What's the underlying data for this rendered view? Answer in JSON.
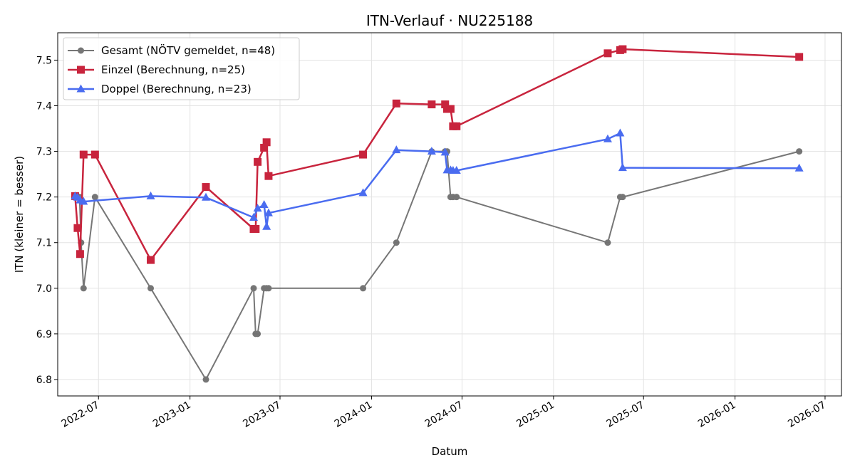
{
  "chart_data": {
    "type": "line",
    "title": "ITN-Verlauf · NU225188",
    "xlabel": "Datum",
    "ylabel": "ITN  (kleiner = besser)",
    "x_is_date": true,
    "xlim": [
      "2022-04-10",
      "2026-08-03"
    ],
    "ylim": [
      6.764,
      7.56
    ],
    "x_ticks": [
      "2022-07",
      "2023-01",
      "2023-07",
      "2024-01",
      "2024-07",
      "2025-01",
      "2025-07",
      "2026-01",
      "2026-07"
    ],
    "y_ticks": [
      "6.8",
      "6.9",
      "7.0",
      "7.1",
      "7.2",
      "7.3",
      "7.4",
      "7.5"
    ],
    "grid": true,
    "legend_position": "upper-left",
    "series": [
      {
        "name": "Gesamt (NÖTV gemeldet, n=48)",
        "color": "#555555",
        "marker": "circle",
        "x": [
          "2022-05-15",
          "2022-05-20",
          "2022-05-24",
          "2022-05-27",
          "2022-06-01",
          "2022-06-24",
          "2022-10-14",
          "2023-02-02",
          "2023-05-09",
          "2023-05-13",
          "2023-05-17",
          "2023-05-30",
          "2023-06-04",
          "2023-06-08",
          "2023-12-15",
          "2024-02-20",
          "2024-05-01",
          "2024-05-28",
          "2024-06-01",
          "2024-06-08",
          "2024-06-13",
          "2024-06-20",
          "2025-04-20",
          "2025-05-15",
          "2025-05-20",
          "2026-05-10"
        ],
        "values": [
          7.2,
          7.2,
          7.2,
          7.1,
          7.0,
          7.2,
          7.0,
          6.8,
          7.0,
          6.9,
          6.9,
          7.0,
          7.0,
          7.0,
          7.0,
          7.1,
          7.3,
          7.3,
          7.3,
          7.2,
          7.2,
          7.2,
          7.1,
          7.2,
          7.2,
          7.3
        ]
      },
      {
        "name": "Einzel (Berechnung, n=25)",
        "color": "#c8243d",
        "marker": "square",
        "x": [
          "2022-05-15",
          "2022-05-20",
          "2022-05-25",
          "2022-06-01",
          "2022-06-24",
          "2022-10-14",
          "2023-02-02",
          "2023-05-09",
          "2023-05-13",
          "2023-05-17",
          "2023-05-30",
          "2023-06-04",
          "2023-06-08",
          "2023-12-15",
          "2024-02-20",
          "2024-05-01",
          "2024-05-28",
          "2024-06-01",
          "2024-06-08",
          "2024-06-13",
          "2024-06-20",
          "2025-04-20",
          "2025-05-15",
          "2025-05-20",
          "2026-05-10"
        ],
        "values": [
          7.202,
          7.132,
          7.075,
          7.293,
          7.293,
          7.062,
          7.222,
          7.13,
          7.13,
          7.277,
          7.308,
          7.32,
          7.246,
          7.293,
          7.405,
          7.403,
          7.403,
          7.393,
          7.393,
          7.355,
          7.355,
          7.515,
          7.522,
          7.524,
          7.507
        ]
      },
      {
        "name": "Doppel (Berechnung, n=23)",
        "color": "#4a6cf0",
        "marker": "triangle",
        "x": [
          "2022-05-15",
          "2022-05-20",
          "2022-05-25",
          "2022-06-01",
          "2022-10-14",
          "2023-02-02",
          "2023-05-09",
          "2023-05-17",
          "2023-05-30",
          "2023-06-04",
          "2023-06-08",
          "2023-12-15",
          "2024-02-20",
          "2024-05-01",
          "2024-05-28",
          "2024-06-01",
          "2024-06-08",
          "2024-06-13",
          "2024-06-20",
          "2025-04-20",
          "2025-05-15",
          "2025-05-20",
          "2026-05-10"
        ],
        "values": [
          7.202,
          7.199,
          7.193,
          7.19,
          7.202,
          7.199,
          7.155,
          7.175,
          7.183,
          7.135,
          7.165,
          7.209,
          7.303,
          7.3,
          7.298,
          7.259,
          7.259,
          7.258,
          7.258,
          7.327,
          7.34,
          7.264,
          7.263
        ]
      }
    ]
  }
}
